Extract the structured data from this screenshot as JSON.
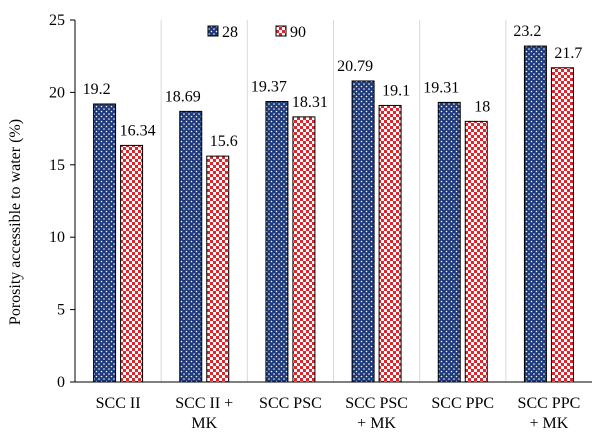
{
  "chart_data": {
    "type": "bar",
    "categories": [
      [
        "SCC II"
      ],
      [
        "SCC II +",
        "MK"
      ],
      [
        "SCC PSC"
      ],
      [
        "SCC PSC",
        "+ MK"
      ],
      [
        "SCC PPC"
      ],
      [
        "SCC PPC",
        "+ MK"
      ]
    ],
    "series": [
      {
        "name": "28",
        "values": [
          19.2,
          18.69,
          19.37,
          20.79,
          19.31,
          23.2
        ],
        "labels": [
          "19.2",
          "18.69",
          "19.37",
          "20.79",
          "19.31",
          "23.2"
        ],
        "color": "#1f3a7a",
        "pattern": "dots"
      },
      {
        "name": "90",
        "values": [
          16.34,
          15.6,
          18.31,
          19.1,
          18,
          21.7
        ],
        "labels": [
          "16.34",
          "15.6",
          "18.31",
          "19.1",
          "18",
          "21.7"
        ],
        "color": "#e0242b",
        "pattern": "checker"
      }
    ],
    "ylabel": "Porosity accessible to water (%)",
    "xlabel": "",
    "ylim": [
      0,
      25
    ],
    "yticks": [
      "0",
      "5",
      "10",
      "15",
      "20",
      "25"
    ],
    "grid": "vertical-category-separators",
    "legend": "top-center"
  },
  "colors": {
    "series_28": "#1f3a7a",
    "series_90": "#e0242b",
    "axis": "#000000",
    "separator": "#d9d9d9"
  }
}
